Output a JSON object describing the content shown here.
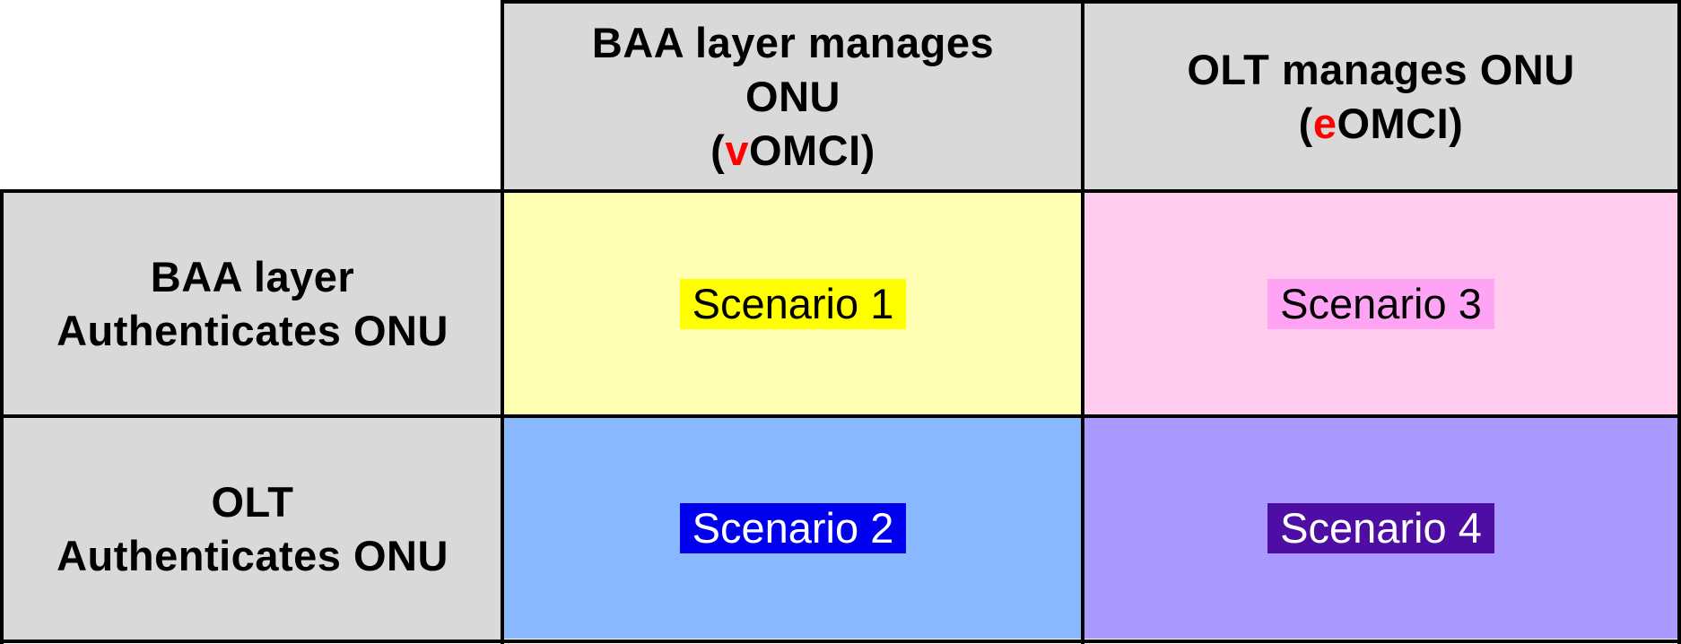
{
  "columns": [
    {
      "line1": "BAA layer manages",
      "line2": "ONU",
      "paren_open": "(",
      "prefix": "v",
      "suffix": "OMCI",
      "paren_close": ")"
    },
    {
      "line1": "OLT manages ONU",
      "paren_open": "(",
      "prefix": "e",
      "suffix": "OMCI",
      "paren_close": ")"
    }
  ],
  "rows": [
    {
      "line1": "BAA layer",
      "line2": "Authenticates ONU"
    },
    {
      "line1": "OLT",
      "line2": "Authenticates ONU"
    }
  ],
  "scenarios": [
    {
      "label": "Scenario 1",
      "cell_color": "#ffffb3",
      "tag_color": "#ffff00",
      "text_color": "#000000"
    },
    {
      "label": "Scenario 3",
      "cell_color": "#ffccee",
      "tag_color": "#ffa3f5",
      "text_color": "#000000"
    },
    {
      "label": "Scenario 2",
      "cell_color": "#8ab8ff",
      "tag_color": "#0000ee",
      "text_color": "#ffffff"
    },
    {
      "label": "Scenario 4",
      "cell_color": "#aa99ff",
      "tag_color": "#4f0ea3",
      "text_color": "#ffffff"
    }
  ],
  "colors": {
    "header_bg": "#d9d9d9",
    "grid_line": "#000000",
    "highlight_letter": "#ff0000"
  }
}
